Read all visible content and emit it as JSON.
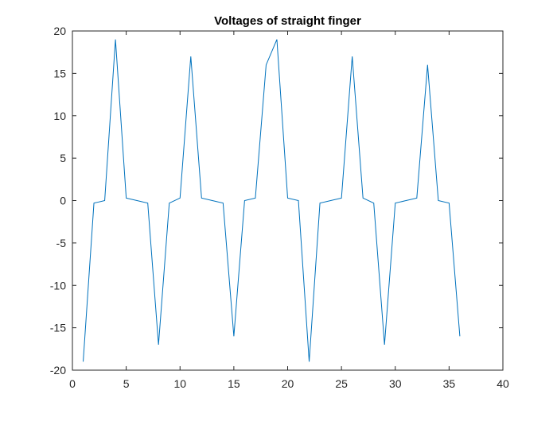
{
  "chart_data": {
    "type": "line",
    "title": "Voltages of straight finger",
    "xlabel": "",
    "ylabel": "",
    "xlim": [
      0,
      40
    ],
    "ylim": [
      -20,
      20
    ],
    "x_ticks": [
      0,
      5,
      10,
      15,
      20,
      25,
      30,
      35,
      40
    ],
    "y_ticks": [
      -20,
      -15,
      -10,
      -5,
      0,
      5,
      10,
      15,
      20
    ],
    "x_tick_labels": [
      "0",
      "5",
      "10",
      "15",
      "20",
      "25",
      "30",
      "35",
      "40"
    ],
    "y_tick_labels": [
      "-20",
      "-15",
      "-10",
      "-5",
      "0",
      "5",
      "10",
      "15",
      "20"
    ],
    "grid": false,
    "legend": "none",
    "series": [
      {
        "color": "#0072BD",
        "x": [
          1,
          2,
          3,
          4,
          5,
          6,
          7,
          8,
          9,
          10,
          11,
          12,
          13,
          14,
          15,
          16,
          17,
          18,
          19,
          20,
          21,
          22,
          23,
          24,
          25,
          26,
          27,
          28,
          29,
          30,
          31,
          32,
          33,
          34,
          35,
          36
        ],
        "y": [
          -19,
          -0.3,
          0,
          19,
          0.3,
          0,
          -0.3,
          -17,
          -0.3,
          0.3,
          17,
          0.3,
          0,
          -0.3,
          -16,
          0,
          0.3,
          16,
          19,
          0.3,
          0,
          -19,
          -0.3,
          0,
          0.3,
          17,
          0.3,
          -0.3,
          -17,
          -0.3,
          0,
          0.3,
          16,
          0,
          -0.3,
          -16
        ]
      }
    ]
  }
}
